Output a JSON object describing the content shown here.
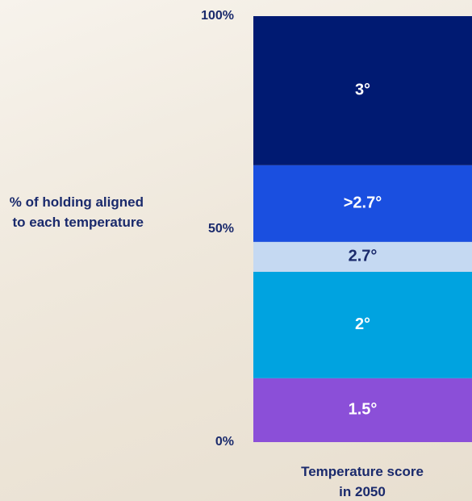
{
  "chart_data": {
    "type": "bar",
    "stacked": true,
    "y_label": "% of holding aligned to each temperature",
    "x_label": "Temperature score in 2050",
    "categories": [
      null
    ],
    "series": [
      {
        "name": "1.5°",
        "color": "#8b4fd8",
        "values": [
          15
        ]
      },
      {
        "name": "2°",
        "color": "#00a3e0",
        "values": [
          25
        ]
      },
      {
        "name": "2.7°",
        "color": "#c5d9f2",
        "values": [
          7
        ]
      },
      {
        "name": ">2.7°",
        "color": "#1a4fe0",
        "values": [
          18
        ]
      },
      {
        "name": "3°",
        "color": "#001a72",
        "values": [
          35
        ]
      }
    ],
    "ylim": [
      0,
      100
    ],
    "yticks": [
      {
        "value": 0,
        "label": "0%"
      },
      {
        "value": 50,
        "label": "50%"
      },
      {
        "value": 100,
        "label": "100%"
      }
    ]
  }
}
